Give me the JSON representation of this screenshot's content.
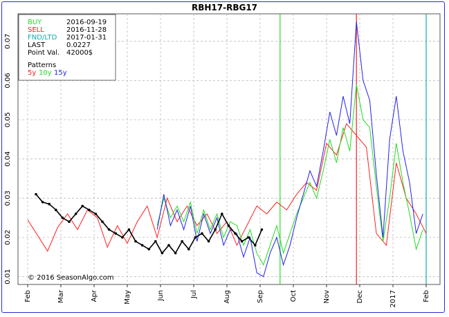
{
  "title": "RBH17-RBG17",
  "colors": {
    "buy": "#22dd22",
    "sell": "#ee2222",
    "fnd": "#11aaaa",
    "5y": "#ff2020",
    "10y": "#20dd20",
    "15y": "#2020ee",
    "current": "#000000",
    "frame": "#2a2ad6"
  },
  "legend": {
    "buy_label": "BUY",
    "buy_value": "2016-09-19",
    "sell_label": "SELL",
    "sell_value": "2016-11-28",
    "fnd_label": "FND/LTD",
    "fnd_value": "2017-01-31",
    "last_label": "LAST",
    "last_value": "0.0227",
    "pv_label": "Point Val.",
    "pv_value": "42000$",
    "patterns_label": "Patterns",
    "p5": "5y",
    "p10": "10y",
    "p15": "15y"
  },
  "copyright": "© 2016 SeasonAlgo.com",
  "chart_data": {
    "type": "line",
    "ylim": [
      0.008,
      0.077
    ],
    "yticks": [
      "0.01",
      "0.02",
      "0.03",
      "0.04",
      "0.05",
      "0.06",
      "0.07"
    ],
    "xticks": [
      "Feb",
      "Mar",
      "Apr",
      "May",
      "Jun",
      "Jul",
      "Aug",
      "Sep",
      "Oct",
      "Nov",
      "Dec",
      "2017",
      "Feb"
    ],
    "grid": true,
    "vlines": [
      {
        "name": "BUY",
        "date": "2016-09-19",
        "color": "#22dd22"
      },
      {
        "name": "SELL",
        "date": "2016-11-28",
        "color": "#ee2222"
      },
      {
        "name": "FND/LTD",
        "date": "2017-01-31",
        "color": "#11aaaa"
      }
    ],
    "series": [
      {
        "name": "5y",
        "color": "#ff2020",
        "x": [
          0,
          0.3,
          0.6,
          0.9,
          1.2,
          1.5,
          1.8,
          2.1,
          2.4,
          2.7,
          3,
          3.3,
          3.6,
          3.9,
          4.2,
          4.5,
          4.8,
          5.1,
          5.4,
          5.7,
          6,
          6.3,
          6.6,
          6.9,
          7.2,
          7.5,
          7.8,
          8.1,
          8.4,
          8.7,
          9,
          9.3,
          9.6,
          9.9,
          10.2,
          10.5,
          10.8,
          11.1,
          11.4,
          11.7,
          12
        ],
        "values": [
          0.0245,
          0.0205,
          0.0165,
          0.0225,
          0.026,
          0.022,
          0.027,
          0.025,
          0.0175,
          0.023,
          0.0185,
          0.024,
          0.028,
          0.02,
          0.03,
          0.024,
          0.028,
          0.023,
          0.026,
          0.021,
          0.024,
          0.018,
          0.023,
          0.028,
          0.026,
          0.029,
          0.027,
          0.031,
          0.034,
          0.032,
          0.044,
          0.041,
          0.049,
          0.046,
          0.043,
          0.021,
          0.018,
          0.039,
          0.03,
          0.026,
          0.021
        ]
      },
      {
        "name": "10y",
        "color": "#20dd20",
        "x": [
          3.9,
          4.1,
          4.3,
          4.5,
          4.7,
          4.9,
          5.1,
          5.3,
          5.5,
          5.7,
          5.9,
          6.1,
          6.3,
          6.5,
          6.7,
          6.9,
          7.1,
          7.3,
          7.5,
          7.7,
          7.9,
          8.1,
          8.3,
          8.5,
          8.7,
          8.9,
          9.1,
          9.3,
          9.5,
          9.7,
          9.9,
          10.1,
          10.3,
          10.5,
          10.7,
          10.9,
          11.1,
          11.3,
          11.5,
          11.7,
          11.9
        ],
        "values": [
          0.023,
          0.03,
          0.025,
          0.028,
          0.024,
          0.029,
          0.021,
          0.027,
          0.022,
          0.026,
          0.02,
          0.024,
          0.023,
          0.018,
          0.022,
          0.016,
          0.013,
          0.018,
          0.023,
          0.016,
          0.021,
          0.026,
          0.03,
          0.034,
          0.03,
          0.037,
          0.045,
          0.039,
          0.048,
          0.042,
          0.059,
          0.05,
          0.048,
          0.033,
          0.019,
          0.03,
          0.044,
          0.034,
          0.026,
          0.017,
          0.022
        ]
      },
      {
        "name": "15y",
        "color": "#2020ee",
        "x": [
          3.9,
          4.1,
          4.3,
          4.5,
          4.7,
          4.9,
          5.1,
          5.3,
          5.5,
          5.7,
          5.9,
          6.1,
          6.3,
          6.5,
          6.7,
          6.9,
          7.1,
          7.3,
          7.5,
          7.7,
          7.9,
          8.1,
          8.3,
          8.5,
          8.7,
          8.9,
          9.1,
          9.3,
          9.5,
          9.7,
          9.9,
          10.1,
          10.3,
          10.5,
          10.7,
          10.9,
          11.1,
          11.3,
          11.5,
          11.7,
          11.9
        ],
        "values": [
          0.022,
          0.031,
          0.023,
          0.027,
          0.022,
          0.028,
          0.019,
          0.026,
          0.021,
          0.025,
          0.018,
          0.022,
          0.021,
          0.015,
          0.02,
          0.011,
          0.01,
          0.016,
          0.02,
          0.013,
          0.018,
          0.025,
          0.031,
          0.037,
          0.033,
          0.042,
          0.052,
          0.046,
          0.056,
          0.049,
          0.075,
          0.06,
          0.055,
          0.036,
          0.02,
          0.045,
          0.056,
          0.042,
          0.034,
          0.021,
          0.026
        ]
      },
      {
        "name": "Current",
        "color": "#000000",
        "x": [
          0.25,
          0.45,
          0.65,
          0.85,
          1.05,
          1.25,
          1.45,
          1.65,
          1.85,
          2.05,
          2.25,
          2.45,
          2.65,
          2.85,
          3.05,
          3.25,
          3.45,
          3.65,
          3.85,
          4.05,
          4.25,
          4.45,
          4.65,
          4.85,
          5.05,
          5.25,
          5.45,
          5.65,
          5.85,
          6.05,
          6.25,
          6.45,
          6.65,
          6.85,
          7.05
        ],
        "values": [
          0.031,
          0.029,
          0.0285,
          0.027,
          0.025,
          0.024,
          0.026,
          0.028,
          0.027,
          0.026,
          0.024,
          0.022,
          0.021,
          0.02,
          0.022,
          0.019,
          0.018,
          0.017,
          0.019,
          0.016,
          0.018,
          0.016,
          0.019,
          0.017,
          0.02,
          0.021,
          0.019,
          0.022,
          0.026,
          0.023,
          0.021,
          0.019,
          0.02,
          0.018,
          0.022
        ]
      }
    ]
  }
}
